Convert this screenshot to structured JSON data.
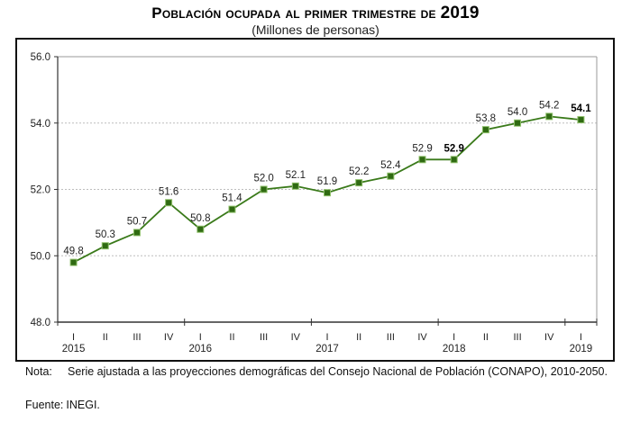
{
  "chart_data": {
    "type": "line",
    "title_prefix": "Población ocupada al primer trimestre de",
    "title_year": "2019",
    "subtitle": "(Millones de personas)",
    "xlabel": "",
    "ylabel": "",
    "ylim": [
      48.0,
      56.0
    ],
    "yticks": [
      "48.0",
      "50.0",
      "52.0",
      "54.0",
      "56.0"
    ],
    "grid": true,
    "legend": "none",
    "quarter_labels": [
      "I",
      "II",
      "III",
      "IV",
      "I",
      "II",
      "III",
      "IV",
      "I",
      "II",
      "III",
      "IV",
      "I",
      "II",
      "III",
      "IV",
      "I"
    ],
    "year_labels": [
      {
        "index": 0,
        "label": "2015"
      },
      {
        "index": 4,
        "label": "2016"
      },
      {
        "index": 8,
        "label": "2017"
      },
      {
        "index": 12,
        "label": "2018"
      },
      {
        "index": 16,
        "label": "2019"
      }
    ],
    "categories": [
      "2015-I",
      "2015-II",
      "2015-III",
      "2015-IV",
      "2016-I",
      "2016-II",
      "2016-III",
      "2016-IV",
      "2017-I",
      "2017-II",
      "2017-III",
      "2017-IV",
      "2018-I",
      "2018-II",
      "2018-III",
      "2018-IV",
      "2019-I"
    ],
    "series": [
      {
        "name": "Población ocupada",
        "color": "#3a7a1a",
        "marker_color": "#2f6a12",
        "values": [
          49.8,
          50.3,
          50.7,
          51.6,
          50.8,
          51.4,
          52.0,
          52.1,
          51.9,
          52.2,
          52.4,
          52.9,
          52.9,
          53.8,
          54.0,
          54.2,
          54.1
        ],
        "labels": [
          "49.8",
          "50.3",
          "50.7",
          "51.6",
          "50.8",
          "51.4",
          "52.0",
          "52.1",
          "51.9",
          "52.2",
          "52.4",
          "52.9",
          "52.9",
          "53.8",
          "54.0",
          "54.2",
          "54.1"
        ],
        "bold_label_indices": [
          12,
          16
        ]
      }
    ]
  },
  "footer": {
    "note_label": "Nota:",
    "note_text": "Serie ajustada a las proyecciones demográficas del Consejo Nacional de Población (CONAPO), 2010-2050.",
    "source_label": "Fuente:",
    "source_value": "INEGI."
  }
}
